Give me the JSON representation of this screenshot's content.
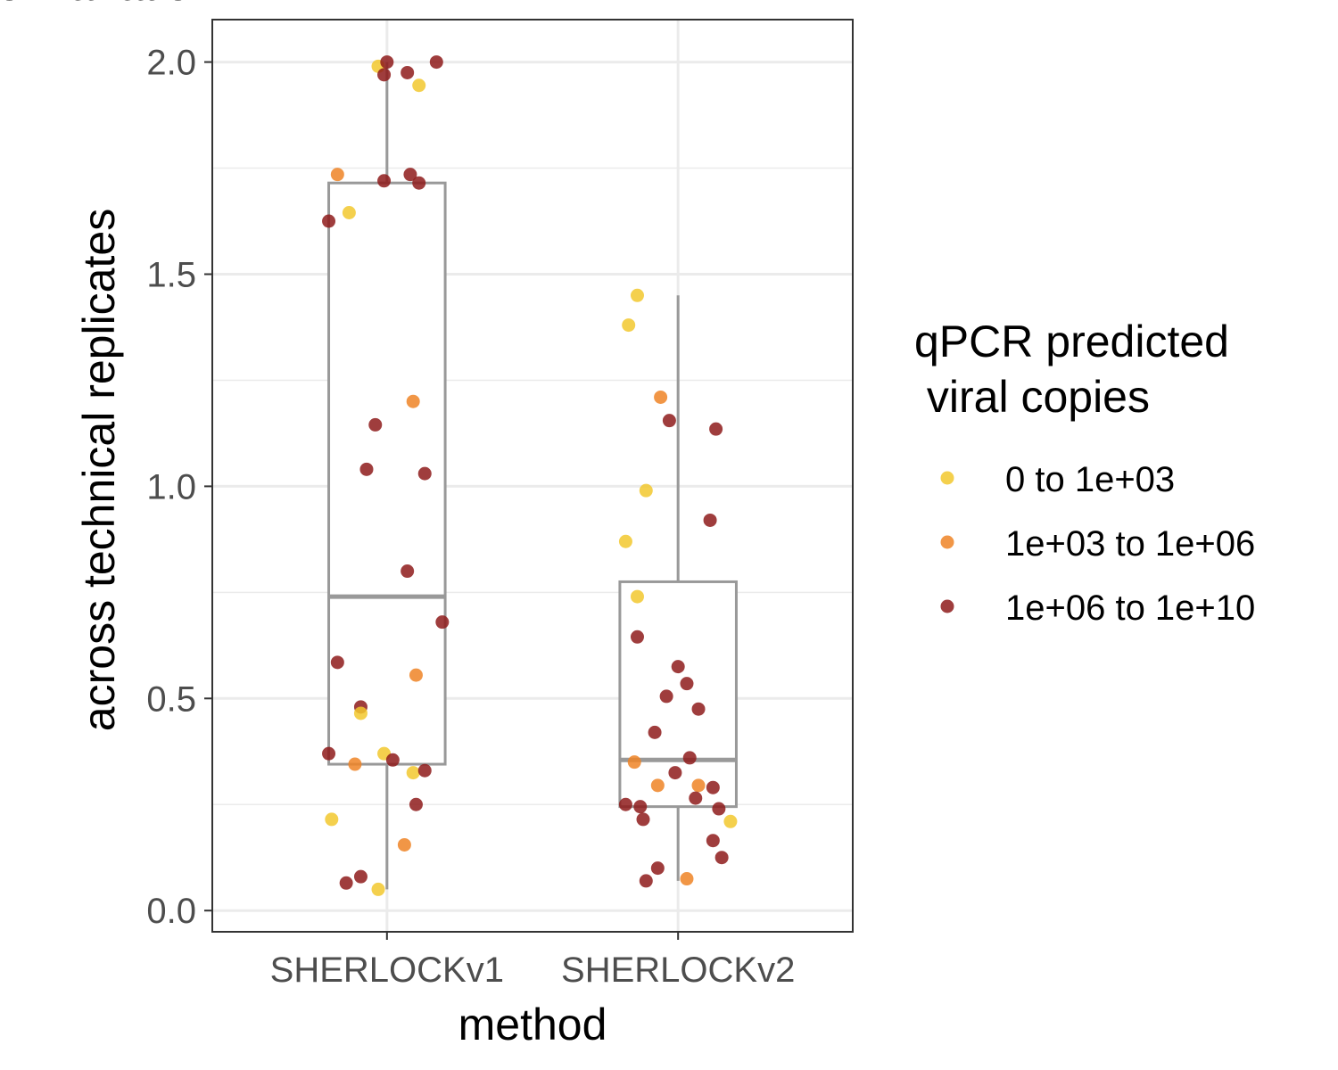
{
  "chart_data": {
    "type": "box+jitter",
    "xlabel": "method",
    "ylabel_lines": [
      "coefficient of variation",
      "across technical replicates"
    ],
    "categories": [
      "SHERLOCKv1",
      "SHERLOCKv2"
    ],
    "ylim": [
      -0.05,
      2.1
    ],
    "yticks": [
      0.0,
      0.5,
      1.0,
      1.5,
      2.0
    ],
    "ytick_labels": [
      "0.0",
      "0.5",
      "1.0",
      "1.5",
      "2.0"
    ],
    "grid": true,
    "legend": {
      "title_lines": [
        "qPCR predicted",
        " viral copies"
      ],
      "position": "right",
      "entries": [
        {
          "label": "0 to 1e+03",
          "color": "#F2C82E"
        },
        {
          "label": "1e+03 to 1e+06",
          "color": "#EE8426"
        },
        {
          "label": "1e+06 to 1e+10",
          "color": "#8E1B1B"
        }
      ]
    },
    "box_color": "#999999",
    "boxes": [
      {
        "category": "SHERLOCKv1",
        "whisker_low": 0.05,
        "q1": 0.345,
        "median": 0.74,
        "q3": 1.715,
        "whisker_high": 2.0
      },
      {
        "category": "SHERLOCKv2",
        "whisker_low": 0.07,
        "q1": 0.245,
        "median": 0.355,
        "q3": 0.775,
        "whisker_high": 1.45
      }
    ],
    "points": [
      {
        "category": "SHERLOCKv1",
        "jitter": -0.03,
        "y": 1.99,
        "group": 0
      },
      {
        "category": "SHERLOCKv1",
        "jitter": 0.0,
        "y": 2.0,
        "group": 2
      },
      {
        "category": "SHERLOCKv1",
        "jitter": -0.01,
        "y": 1.97,
        "group": 2
      },
      {
        "category": "SHERLOCKv1",
        "jitter": 0.07,
        "y": 1.975,
        "group": 2
      },
      {
        "category": "SHERLOCKv1",
        "jitter": 0.17,
        "y": 2.0,
        "group": 2
      },
      {
        "category": "SHERLOCKv1",
        "jitter": 0.11,
        "y": 1.945,
        "group": 0
      },
      {
        "category": "SHERLOCKv1",
        "jitter": -0.17,
        "y": 1.735,
        "group": 1
      },
      {
        "category": "SHERLOCKv1",
        "jitter": -0.01,
        "y": 1.72,
        "group": 2
      },
      {
        "category": "SHERLOCKv1",
        "jitter": 0.08,
        "y": 1.735,
        "group": 2
      },
      {
        "category": "SHERLOCKv1",
        "jitter": 0.11,
        "y": 1.715,
        "group": 2
      },
      {
        "category": "SHERLOCKv1",
        "jitter": -0.2,
        "y": 1.625,
        "group": 2
      },
      {
        "category": "SHERLOCKv1",
        "jitter": -0.13,
        "y": 1.645,
        "group": 0
      },
      {
        "category": "SHERLOCKv1",
        "jitter": 0.09,
        "y": 1.2,
        "group": 1
      },
      {
        "category": "SHERLOCKv1",
        "jitter": -0.04,
        "y": 1.145,
        "group": 2
      },
      {
        "category": "SHERLOCKv1",
        "jitter": -0.07,
        "y": 1.04,
        "group": 2
      },
      {
        "category": "SHERLOCKv1",
        "jitter": 0.13,
        "y": 1.03,
        "group": 2
      },
      {
        "category": "SHERLOCKv1",
        "jitter": 0.07,
        "y": 0.8,
        "group": 2
      },
      {
        "category": "SHERLOCKv1",
        "jitter": 0.19,
        "y": 0.68,
        "group": 2
      },
      {
        "category": "SHERLOCKv1",
        "jitter": -0.17,
        "y": 0.585,
        "group": 2
      },
      {
        "category": "SHERLOCKv1",
        "jitter": 0.1,
        "y": 0.555,
        "group": 1
      },
      {
        "category": "SHERLOCKv1",
        "jitter": -0.09,
        "y": 0.48,
        "group": 2
      },
      {
        "category": "SHERLOCKv1",
        "jitter": -0.09,
        "y": 0.465,
        "group": 0
      },
      {
        "category": "SHERLOCKv1",
        "jitter": -0.2,
        "y": 0.37,
        "group": 2
      },
      {
        "category": "SHERLOCKv1",
        "jitter": -0.01,
        "y": 0.37,
        "group": 0
      },
      {
        "category": "SHERLOCKv1",
        "jitter": -0.11,
        "y": 0.345,
        "group": 1
      },
      {
        "category": "SHERLOCKv1",
        "jitter": 0.02,
        "y": 0.355,
        "group": 2
      },
      {
        "category": "SHERLOCKv1",
        "jitter": 0.09,
        "y": 0.325,
        "group": 0
      },
      {
        "category": "SHERLOCKv1",
        "jitter": 0.13,
        "y": 0.33,
        "group": 2
      },
      {
        "category": "SHERLOCKv1",
        "jitter": 0.1,
        "y": 0.25,
        "group": 2
      },
      {
        "category": "SHERLOCKv1",
        "jitter": -0.19,
        "y": 0.215,
        "group": 0
      },
      {
        "category": "SHERLOCKv1",
        "jitter": 0.06,
        "y": 0.155,
        "group": 1
      },
      {
        "category": "SHERLOCKv1",
        "jitter": -0.14,
        "y": 0.065,
        "group": 2
      },
      {
        "category": "SHERLOCKv1",
        "jitter": -0.09,
        "y": 0.08,
        "group": 2
      },
      {
        "category": "SHERLOCKv1",
        "jitter": -0.03,
        "y": 0.05,
        "group": 0
      },
      {
        "category": "SHERLOCKv2",
        "jitter": -0.14,
        "y": 1.45,
        "group": 0
      },
      {
        "category": "SHERLOCKv2",
        "jitter": -0.17,
        "y": 1.38,
        "group": 0
      },
      {
        "category": "SHERLOCKv2",
        "jitter": -0.06,
        "y": 1.21,
        "group": 1
      },
      {
        "category": "SHERLOCKv2",
        "jitter": -0.03,
        "y": 1.155,
        "group": 2
      },
      {
        "category": "SHERLOCKv2",
        "jitter": 0.13,
        "y": 1.135,
        "group": 2
      },
      {
        "category": "SHERLOCKv2",
        "jitter": -0.11,
        "y": 0.99,
        "group": 0
      },
      {
        "category": "SHERLOCKv2",
        "jitter": 0.11,
        "y": 0.92,
        "group": 2
      },
      {
        "category": "SHERLOCKv2",
        "jitter": -0.18,
        "y": 0.87,
        "group": 0
      },
      {
        "category": "SHERLOCKv2",
        "jitter": -0.14,
        "y": 0.74,
        "group": 0
      },
      {
        "category": "SHERLOCKv2",
        "jitter": -0.14,
        "y": 0.645,
        "group": 2
      },
      {
        "category": "SHERLOCKv2",
        "jitter": 0.0,
        "y": 0.575,
        "group": 2
      },
      {
        "category": "SHERLOCKv2",
        "jitter": 0.03,
        "y": 0.535,
        "group": 2
      },
      {
        "category": "SHERLOCKv2",
        "jitter": -0.04,
        "y": 0.505,
        "group": 2
      },
      {
        "category": "SHERLOCKv2",
        "jitter": 0.07,
        "y": 0.475,
        "group": 2
      },
      {
        "category": "SHERLOCKv2",
        "jitter": -0.08,
        "y": 0.42,
        "group": 2
      },
      {
        "category": "SHERLOCKv2",
        "jitter": 0.04,
        "y": 0.36,
        "group": 2
      },
      {
        "category": "SHERLOCKv2",
        "jitter": -0.15,
        "y": 0.35,
        "group": 1
      },
      {
        "category": "SHERLOCKv2",
        "jitter": -0.01,
        "y": 0.325,
        "group": 2
      },
      {
        "category": "SHERLOCKv2",
        "jitter": -0.07,
        "y": 0.295,
        "group": 1
      },
      {
        "category": "SHERLOCKv2",
        "jitter": 0.07,
        "y": 0.295,
        "group": 1
      },
      {
        "category": "SHERLOCKv2",
        "jitter": 0.12,
        "y": 0.29,
        "group": 2
      },
      {
        "category": "SHERLOCKv2",
        "jitter": 0.06,
        "y": 0.265,
        "group": 2
      },
      {
        "category": "SHERLOCKv2",
        "jitter": -0.18,
        "y": 0.25,
        "group": 2
      },
      {
        "category": "SHERLOCKv2",
        "jitter": -0.13,
        "y": 0.245,
        "group": 2
      },
      {
        "category": "SHERLOCKv2",
        "jitter": 0.14,
        "y": 0.24,
        "group": 2
      },
      {
        "category": "SHERLOCKv2",
        "jitter": -0.12,
        "y": 0.215,
        "group": 2
      },
      {
        "category": "SHERLOCKv2",
        "jitter": 0.18,
        "y": 0.21,
        "group": 0
      },
      {
        "category": "SHERLOCKv2",
        "jitter": 0.12,
        "y": 0.165,
        "group": 2
      },
      {
        "category": "SHERLOCKv2",
        "jitter": 0.15,
        "y": 0.125,
        "group": 2
      },
      {
        "category": "SHERLOCKv2",
        "jitter": -0.07,
        "y": 0.1,
        "group": 2
      },
      {
        "category": "SHERLOCKv2",
        "jitter": 0.03,
        "y": 0.075,
        "group": 1
      },
      {
        "category": "SHERLOCKv2",
        "jitter": -0.11,
        "y": 0.07,
        "group": 2
      }
    ]
  }
}
